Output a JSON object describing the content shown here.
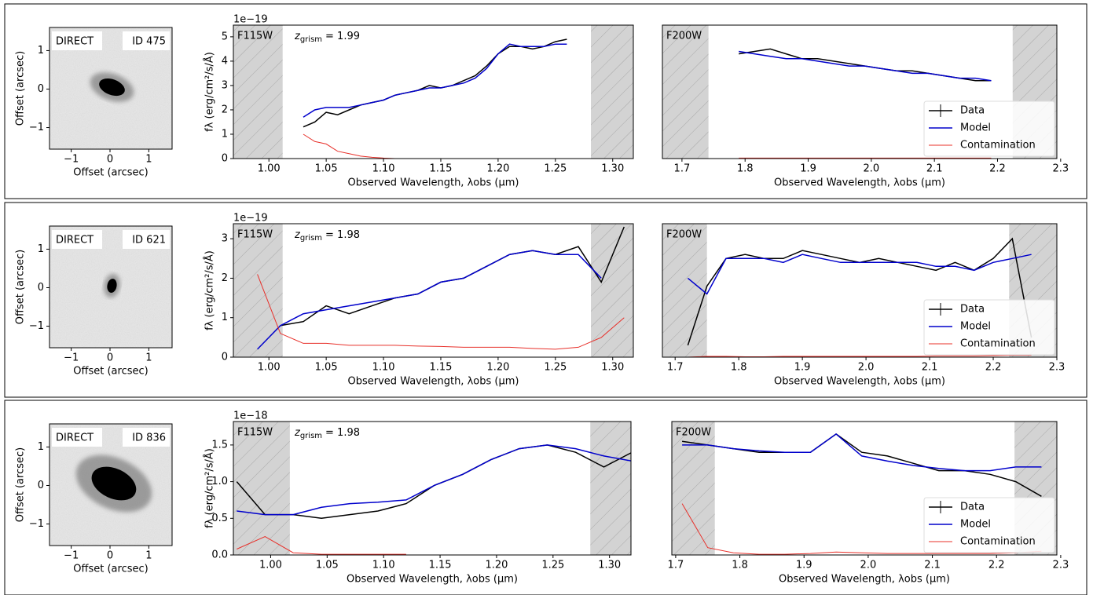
{
  "chart_data": [
    {
      "type": "image",
      "xlabel": "Offset (arcsec)",
      "ylabel": "Offset (arcsec)",
      "xlim": [
        -1.56,
        1.6
      ],
      "ylim": [
        -1.56,
        1.6
      ],
      "xticks": [
        {
          "value": -1,
          "label": "−1"
        },
        0,
        1
      ],
      "yticks": [
        {
          "value": -1,
          "label": "−1"
        },
        0,
        1
      ],
      "labels": [
        "DIRECT",
        "ID 475"
      ]
    },
    {
      "type": "spectrum",
      "filter": "F115W",
      "z_label": {
        "symbol": "z",
        "subscript": "grism",
        "text": "= 1.99"
      },
      "offset_text": "1e−19",
      "xlabel": "Observed Wavelength, λobs (μm)",
      "ylabel": "fλ (erg/cm²/s/Å)",
      "xlim": [
        0.969,
        1.318
      ],
      "ylim": [
        0,
        5.48
      ],
      "xticks": [
        {
          "value": 1,
          "label": "1.00"
        },
        1.05,
        {
          "value": 1.1,
          "label": "1.10"
        },
        1.15,
        {
          "value": 1.2,
          "label": "1.20"
        },
        1.25,
        {
          "value": 1.3,
          "label": "1.30"
        }
      ],
      "yticks": [
        0,
        1,
        2,
        3,
        4,
        5
      ],
      "shaded": [
        [
          0.969,
          1.012
        ],
        [
          1.281,
          1.318
        ]
      ],
      "x": [
        1.03,
        1.04,
        1.05,
        1.06,
        1.07,
        1.08,
        1.09,
        1.1,
        1.11,
        1.12,
        1.13,
        1.14,
        1.15,
        1.16,
        1.17,
        1.18,
        1.19,
        1.2,
        1.21,
        1.22,
        1.23,
        1.24,
        1.25,
        1.26
      ],
      "series": [
        {
          "name": "Data",
          "color": "#000000",
          "values": [
            1.3,
            1.5,
            1.9,
            1.8,
            2.0,
            2.2,
            2.3,
            2.4,
            2.6,
            2.7,
            2.8,
            3.0,
            2.9,
            3.0,
            3.2,
            3.4,
            3.8,
            4.3,
            4.6,
            4.6,
            4.5,
            4.6,
            4.8,
            4.9
          ]
        },
        {
          "name": "Model",
          "color": "#0000cc",
          "values": [
            1.7,
            2.0,
            2.1,
            2.1,
            2.1,
            2.2,
            2.3,
            2.4,
            2.6,
            2.7,
            2.8,
            2.9,
            2.9,
            3.0,
            3.1,
            3.3,
            3.7,
            4.3,
            4.7,
            4.6,
            4.6,
            4.6,
            4.7,
            4.7
          ]
        },
        {
          "name": "Contamination",
          "color": "#e8302a",
          "values": [
            1.0,
            0.7,
            0.6,
            0.3,
            0.2,
            0.1,
            0.05,
            0.02,
            0.0,
            null,
            null,
            null,
            null,
            null,
            null,
            null,
            null,
            null,
            null,
            null,
            null,
            null,
            null,
            null
          ]
        }
      ]
    },
    {
      "type": "spectrum",
      "filter": "F200W",
      "xlabel": "Observed Wavelength, λobs (μm)",
      "xlim": [
        1.669,
        2.294
      ],
      "ylim": [
        0,
        5.48
      ],
      "xticks": [
        1.7,
        1.8,
        1.9,
        {
          "value": 2,
          "label": "2.0"
        },
        2.1,
        2.2,
        2.3
      ],
      "shaded": [
        [
          1.669,
          1.742
        ],
        [
          2.224,
          2.294
        ]
      ],
      "x": [
        1.79,
        1.815,
        1.84,
        1.865,
        1.89,
        1.915,
        1.94,
        1.965,
        1.99,
        2.015,
        2.04,
        2.065,
        2.09,
        2.115,
        2.14,
        2.165,
        2.19
      ],
      "series": [
        {
          "name": "Data",
          "color": "#000000",
          "values": [
            4.3,
            4.4,
            4.5,
            4.3,
            4.1,
            4.1,
            4.0,
            3.9,
            3.8,
            3.7,
            3.6,
            3.6,
            3.5,
            3.4,
            3.3,
            3.2,
            3.2
          ]
        },
        {
          "name": "Model",
          "color": "#0000cc",
          "values": [
            4.4,
            4.3,
            4.2,
            4.1,
            4.1,
            4.0,
            3.9,
            3.8,
            3.8,
            3.7,
            3.6,
            3.5,
            3.5,
            3.4,
            3.3,
            3.3,
            3.2
          ]
        },
        {
          "name": "Contamination",
          "color": "#e8302a",
          "values": [
            0.02,
            0.02,
            0.02,
            0.02,
            0.02,
            0.02,
            0.02,
            0.02,
            0.02,
            0.02,
            0.02,
            0.02,
            0.02,
            0.02,
            0.02,
            0.02,
            0.02
          ]
        }
      ],
      "legend": "lower right"
    },
    {
      "type": "image",
      "xlabel": "Offset (arcsec)",
      "ylabel": "Offset (arcsec)",
      "xlim": [
        -1.56,
        1.6
      ],
      "ylim": [
        -1.56,
        1.6
      ],
      "xticks": [
        {
          "value": -1,
          "label": "−1"
        },
        0,
        1
      ],
      "yticks": [
        {
          "value": -1,
          "label": "−1"
        },
        0,
        1
      ],
      "labels": [
        "DIRECT",
        "ID 621"
      ]
    },
    {
      "type": "spectrum",
      "filter": "F115W",
      "z_label": {
        "symbol": "z",
        "subscript": "grism",
        "text": "= 1.98"
      },
      "offset_text": "1e−19",
      "xlabel": "Observed Wavelength, λobs (μm)",
      "ylabel": "fλ (erg/cm²/s/Å)",
      "xlim": [
        0.969,
        1.318
      ],
      "ylim": [
        0,
        3.38
      ],
      "xticks": [
        {
          "value": 1,
          "label": "1.00"
        },
        1.05,
        {
          "value": 1.1,
          "label": "1.10"
        },
        1.15,
        {
          "value": 1.2,
          "label": "1.20"
        },
        1.25,
        {
          "value": 1.3,
          "label": "1.30"
        }
      ],
      "yticks": [
        0,
        1,
        2,
        3
      ],
      "shaded": [
        [
          0.969,
          1.012
        ],
        [
          1.281,
          1.318
        ]
      ],
      "x": [
        0.99,
        1.01,
        1.03,
        1.05,
        1.07,
        1.09,
        1.11,
        1.13,
        1.15,
        1.17,
        1.19,
        1.21,
        1.23,
        1.25,
        1.27,
        1.29,
        1.31
      ],
      "series": [
        {
          "name": "Data",
          "color": "#000000",
          "values": [
            null,
            0.8,
            0.9,
            1.3,
            1.1,
            1.3,
            1.5,
            1.6,
            1.9,
            2.0,
            2.3,
            2.6,
            2.7,
            2.6,
            2.8,
            1.9,
            3.3
          ]
        },
        {
          "name": "Model",
          "color": "#0000cc",
          "values": [
            0.2,
            0.8,
            1.1,
            1.2,
            1.3,
            1.4,
            1.5,
            1.6,
            1.9,
            2.0,
            2.3,
            2.6,
            2.7,
            2.6,
            2.6,
            2.0,
            null
          ]
        },
        {
          "name": "Contamination",
          "color": "#e8302a",
          "values": [
            2.1,
            0.6,
            0.35,
            0.35,
            0.3,
            0.3,
            0.3,
            0.28,
            0.27,
            0.25,
            0.25,
            0.25,
            0.22,
            0.2,
            0.25,
            0.5,
            1.0
          ]
        }
      ]
    },
    {
      "type": "spectrum",
      "filter": "F200W",
      "xlabel": "Observed Wavelength, λobs (μm)",
      "xlim": [
        1.68,
        2.3
      ],
      "ylim": [
        0,
        3.38
      ],
      "xticks": [
        1.7,
        1.8,
        1.9,
        {
          "value": 2,
          "label": "2.0"
        },
        2.1,
        2.2,
        2.3
      ],
      "shaded": [
        [
          1.68,
          1.75
        ],
        [
          2.225,
          2.3
        ]
      ],
      "x": [
        1.72,
        1.75,
        1.78,
        1.81,
        1.84,
        1.87,
        1.9,
        1.93,
        1.96,
        1.99,
        2.02,
        2.05,
        2.08,
        2.11,
        2.14,
        2.17,
        2.2,
        2.23,
        2.26
      ],
      "series": [
        {
          "name": "Data",
          "color": "#000000",
          "values": [
            0.3,
            1.8,
            2.5,
            2.6,
            2.5,
            2.5,
            2.7,
            2.6,
            2.5,
            2.4,
            2.5,
            2.4,
            2.3,
            2.2,
            2.4,
            2.2,
            2.5,
            3.0,
            0.5
          ]
        },
        {
          "name": "Model",
          "color": "#0000cc",
          "values": [
            2.0,
            1.6,
            2.5,
            2.5,
            2.5,
            2.4,
            2.6,
            2.5,
            2.4,
            2.4,
            2.4,
            2.4,
            2.4,
            2.3,
            2.3,
            2.2,
            2.4,
            2.5,
            2.6
          ]
        },
        {
          "name": "Contamination",
          "color": "#e8302a",
          "values": [
            0.0,
            0.02,
            0.02,
            0.01,
            0.01,
            0.02,
            0.02,
            0.02,
            0.02,
            0.02,
            0.02,
            0.02,
            0.02,
            0.03,
            0.03,
            0.03,
            0.04,
            0.05,
            0.05
          ]
        }
      ],
      "legend": "lower right"
    },
    {
      "type": "image",
      "xlabel": "Offset (arcsec)",
      "ylabel": "Offset (arcsec)",
      "xlim": [
        -1.56,
        1.6
      ],
      "ylim": [
        -1.56,
        1.6
      ],
      "xticks": [
        {
          "value": -1,
          "label": "−1"
        },
        0,
        1
      ],
      "yticks": [
        {
          "value": -1,
          "label": "−1"
        },
        0,
        1
      ],
      "labels": [
        "DIRECT",
        "ID 836"
      ]
    },
    {
      "type": "spectrum",
      "filter": "F115W",
      "z_label": {
        "symbol": "z",
        "subscript": "grism",
        "text": "= 1.98"
      },
      "offset_text": "1e−18",
      "xlabel": "Observed Wavelength, λobs (μm)",
      "ylabel": "fλ (erg/cm²/s/Å)",
      "xlim": [
        0.967,
        1.319
      ],
      "ylim": [
        0,
        1.82
      ],
      "xticks": [
        {
          "value": 1,
          "label": "1.00"
        },
        1.05,
        {
          "value": 1.1,
          "label": "1.10"
        },
        1.15,
        {
          "value": 1.2,
          "label": "1.20"
        },
        1.25,
        {
          "value": 1.3,
          "label": "1.30"
        }
      ],
      "yticks": [
        {
          "value": 0,
          "label": "0.0"
        },
        0.5,
        {
          "value": 1,
          "label": "1.0"
        },
        1.5
      ],
      "shaded": [
        [
          0.967,
          1.017
        ],
        [
          1.283,
          1.319
        ]
      ],
      "x": [
        0.97,
        0.995,
        1.02,
        1.045,
        1.07,
        1.095,
        1.12,
        1.145,
        1.17,
        1.195,
        1.22,
        1.245,
        1.27,
        1.295,
        1.32
      ],
      "series": [
        {
          "name": "Data",
          "color": "#000000",
          "values": [
            1.0,
            0.55,
            0.55,
            0.5,
            0.55,
            0.6,
            0.7,
            0.95,
            1.1,
            1.3,
            1.45,
            1.5,
            1.4,
            1.2,
            1.4
          ]
        },
        {
          "name": "Model",
          "color": "#0000cc",
          "values": [
            0.6,
            0.55,
            0.55,
            0.65,
            0.7,
            0.72,
            0.75,
            0.95,
            1.1,
            1.3,
            1.45,
            1.5,
            1.45,
            1.35,
            1.28
          ]
        },
        {
          "name": "Contamination",
          "color": "#e8302a",
          "values": [
            0.08,
            0.25,
            0.03,
            0.01,
            0.01,
            0.01,
            0.01,
            null,
            null,
            null,
            null,
            null,
            null,
            null,
            null
          ]
        }
      ]
    },
    {
      "type": "spectrum",
      "filter": "F200W",
      "xlabel": "Observed Wavelength, λobs (μm)",
      "xlim": [
        1.694,
        2.294
      ],
      "ylim": [
        0,
        1.82
      ],
      "xticks": [
        1.7,
        1.8,
        1.9,
        {
          "value": 2,
          "label": "2.0"
        },
        2.1,
        2.2,
        2.3
      ],
      "shaded": [
        [
          1.694,
          1.761
        ],
        [
          2.228,
          2.294
        ]
      ],
      "x": [
        1.71,
        1.75,
        1.79,
        1.83,
        1.87,
        1.91,
        1.95,
        1.99,
        2.03,
        2.07,
        2.11,
        2.15,
        2.19,
        2.23,
        2.27
      ],
      "series": [
        {
          "name": "Data",
          "color": "#000000",
          "values": [
            1.55,
            1.5,
            1.45,
            1.4,
            1.4,
            1.4,
            1.65,
            1.4,
            1.35,
            1.25,
            1.15,
            1.15,
            1.1,
            1.0,
            0.8
          ]
        },
        {
          "name": "Model",
          "color": "#0000cc",
          "values": [
            1.5,
            1.5,
            1.45,
            1.42,
            1.4,
            1.4,
            1.65,
            1.35,
            1.28,
            1.22,
            1.18,
            1.15,
            1.15,
            1.2,
            1.2
          ]
        },
        {
          "name": "Contamination",
          "color": "#e8302a",
          "values": [
            0.7,
            0.1,
            0.03,
            0.01,
            0.01,
            0.02,
            0.04,
            0.03,
            0.02,
            0.02,
            0.02,
            0.02,
            0.02,
            0.03,
            0.05
          ]
        }
      ],
      "legend": "lower right"
    }
  ]
}
